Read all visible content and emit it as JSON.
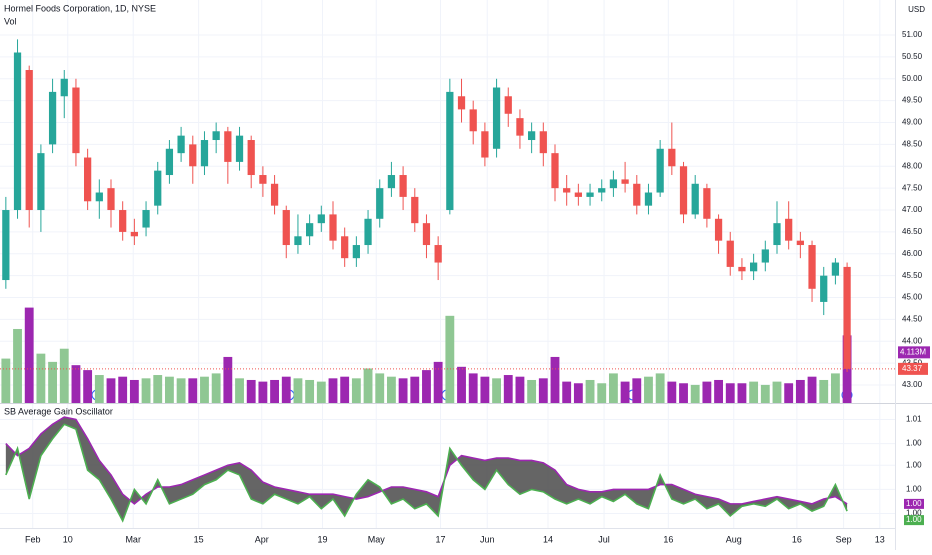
{
  "chart_data": [
    {
      "type": "candlestick",
      "title": "Hormel Foods Corporation, 1D, NYSE",
      "subtitle": "Vol",
      "currency": "USD",
      "up_color": "#26a69a",
      "down_color": "#ef5350",
      "volume_up_color": "#8fc793",
      "volume_down_color": "#9c27b0",
      "open": [
        45.4,
        47.0,
        50.2,
        47.0,
        48.5,
        49.6,
        49.8,
        48.2,
        47.2,
        47.5,
        47.0,
        46.5,
        46.6,
        47.1,
        47.8,
        48.3,
        48.5,
        48.0,
        48.6,
        48.8,
        48.1,
        48.6,
        47.8,
        47.6,
        47.0,
        46.2,
        46.4,
        46.7,
        46.9,
        46.4,
        45.9,
        46.2,
        46.8,
        47.5,
        47.8,
        47.3,
        46.7,
        46.2,
        47.0,
        49.6,
        49.3,
        48.8,
        48.4,
        49.6,
        49.1,
        48.6,
        48.8,
        48.3,
        47.5,
        47.4,
        47.3,
        47.4,
        47.5,
        47.7,
        47.6,
        47.1,
        47.4,
        48.4,
        48.0,
        46.9,
        47.5,
        46.8,
        46.3,
        45.7,
        45.6,
        45.8,
        46.2,
        46.8,
        46.3,
        46.2,
        44.9,
        45.5,
        45.7
      ],
      "high": [
        47.3,
        50.9,
        50.3,
        48.5,
        50.0,
        50.2,
        50.0,
        48.4,
        47.7,
        47.7,
        47.2,
        46.8,
        47.2,
        48.1,
        48.6,
        48.9,
        48.7,
        48.8,
        49.0,
        48.9,
        48.9,
        48.7,
        48.0,
        47.8,
        47.1,
        46.9,
        46.9,
        47.1,
        47.2,
        46.6,
        46.4,
        47.0,
        47.7,
        48.1,
        48.0,
        47.5,
        46.9,
        46.4,
        50.0,
        50.0,
        49.5,
        49.0,
        50.0,
        49.8,
        49.3,
        49.0,
        49.0,
        48.5,
        47.8,
        47.6,
        47.6,
        47.7,
        47.9,
        48.1,
        47.8,
        47.6,
        48.6,
        49.0,
        48.1,
        47.8,
        47.6,
        46.9,
        46.5,
        45.9,
        46.0,
        46.3,
        47.2,
        47.2,
        46.5,
        46.3,
        45.7,
        45.9,
        45.8
      ],
      "low": [
        45.2,
        46.8,
        46.6,
        46.5,
        48.3,
        49.1,
        48.0,
        47.0,
        46.8,
        46.6,
        46.3,
        46.2,
        46.4,
        46.9,
        47.6,
        48.1,
        47.6,
        47.8,
        48.3,
        47.6,
        47.9,
        47.5,
        47.3,
        46.9,
        45.9,
        46.0,
        46.2,
        46.5,
        46.1,
        45.7,
        45.7,
        46.0,
        46.6,
        47.3,
        47.0,
        46.5,
        45.9,
        45.4,
        46.9,
        49.0,
        48.5,
        48.0,
        48.2,
        48.9,
        48.4,
        48.3,
        48.0,
        47.2,
        47.1,
        47.1,
        47.1,
        47.2,
        47.3,
        47.4,
        46.9,
        46.9,
        47.3,
        47.8,
        46.7,
        46.8,
        46.6,
        46.0,
        45.5,
        45.4,
        45.4,
        45.6,
        46.0,
        46.1,
        45.9,
        44.9,
        44.6,
        45.3,
        43.3
      ],
      "close": [
        47.0,
        50.6,
        47.0,
        48.3,
        49.7,
        50.0,
        48.3,
        47.2,
        47.4,
        47.0,
        46.5,
        46.4,
        47.0,
        47.9,
        48.4,
        48.7,
        48.0,
        48.6,
        48.8,
        48.1,
        48.7,
        47.8,
        47.6,
        47.1,
        46.2,
        46.4,
        46.7,
        46.9,
        46.3,
        45.9,
        46.2,
        46.8,
        47.5,
        47.8,
        47.3,
        46.7,
        46.2,
        45.8,
        49.7,
        49.3,
        48.8,
        48.2,
        49.8,
        49.2,
        48.7,
        48.8,
        48.3,
        47.5,
        47.4,
        47.3,
        47.4,
        47.5,
        47.7,
        47.6,
        47.1,
        47.4,
        48.4,
        48.0,
        46.9,
        47.6,
        46.8,
        46.3,
        45.7,
        45.6,
        45.8,
        46.1,
        46.7,
        46.3,
        46.2,
        45.2,
        45.5,
        45.8,
        43.37
      ],
      "last_close_label": "43.37",
      "volume": [
        2.7,
        4.5,
        5.8,
        3.0,
        2.5,
        3.3,
        2.3,
        2.0,
        1.7,
        1.5,
        1.6,
        1.4,
        1.5,
        1.7,
        1.6,
        1.5,
        1.5,
        1.6,
        1.8,
        2.8,
        1.5,
        1.4,
        1.3,
        1.4,
        1.6,
        1.5,
        1.4,
        1.3,
        1.5,
        1.6,
        1.5,
        2.1,
        1.8,
        1.6,
        1.5,
        1.6,
        2.0,
        2.5,
        5.3,
        2.2,
        1.8,
        1.6,
        1.5,
        1.7,
        1.6,
        1.4,
        1.5,
        2.8,
        1.3,
        1.2,
        1.4,
        1.2,
        1.8,
        1.3,
        1.5,
        1.6,
        1.8,
        1.3,
        1.2,
        1.1,
        1.3,
        1.4,
        1.2,
        1.2,
        1.3,
        1.1,
        1.3,
        1.2,
        1.4,
        1.6,
        1.4,
        1.8,
        4.113
      ],
      "last_volume_label": "4.113M",
      "volume_lim": [
        0,
        24.5
      ],
      "xlim": [
        -0.5,
        76.1
      ],
      "xticks": [
        {
          "value": 2.3,
          "label": "Feb"
        },
        {
          "value": 5.3,
          "label": "10"
        },
        {
          "value": 10.9,
          "label": "Mar"
        },
        {
          "value": 16.5,
          "label": "15"
        },
        {
          "value": 21.9,
          "label": "Apr"
        },
        {
          "value": 27.1,
          "label": "19"
        },
        {
          "value": 31.7,
          "label": "May"
        },
        {
          "value": 37.2,
          "label": "17"
        },
        {
          "value": 41.2,
          "label": "Jun"
        },
        {
          "value": 46.4,
          "label": "14"
        },
        {
          "value": 51.2,
          "label": "Jul"
        },
        {
          "value": 56.7,
          "label": "16"
        },
        {
          "value": 62.3,
          "label": "Aug"
        },
        {
          "value": 67.7,
          "label": "16"
        },
        {
          "value": 71.7,
          "label": "Sep"
        },
        {
          "value": 74.8,
          "label": "13"
        }
      ],
      "ylim": [
        42.59,
        51.8
      ],
      "yticks": [
        {
          "value": 43,
          "label": "43.00"
        },
        {
          "value": 43.5,
          "label": "43.50"
        },
        {
          "value": 44,
          "label": "44.00"
        },
        {
          "value": 44.5,
          "label": "44.50"
        },
        {
          "value": 45,
          "label": "45.00"
        },
        {
          "value": 45.5,
          "label": "45.50"
        },
        {
          "value": 46,
          "label": "46.00"
        },
        {
          "value": 46.5,
          "label": "46.50"
        },
        {
          "value": 47,
          "label": "47.00"
        },
        {
          "value": 47.5,
          "label": "47.50"
        },
        {
          "value": 48,
          "label": "48.00"
        },
        {
          "value": 48.5,
          "label": "48.50"
        },
        {
          "value": 49,
          "label": "49.00"
        },
        {
          "value": 49.5,
          "label": "49.50"
        },
        {
          "value": 50,
          "label": "50.00"
        },
        {
          "value": 50.5,
          "label": "50.50"
        },
        {
          "value": 51,
          "label": "51.00"
        }
      ],
      "grid": true
    },
    {
      "type": "line",
      "title": "SB Average Gain Oscillator",
      "fill_color": "#4a4a4a",
      "xlim": [
        -0.5,
        76.1
      ],
      "series": [
        {
          "name": "Average Gain",
          "color": "#9c27b0",
          "values": [
            1.0042,
            1.0037,
            1.004,
            1.0046,
            1.005,
            1.0053,
            1.0052,
            1.0044,
            1.0035,
            1.0029,
            1.0021,
            1.0017,
            1.0021,
            1.0024,
            1.0024,
            1.0025,
            1.0027,
            1.0029,
            1.0031,
            1.0033,
            1.0034,
            1.0031,
            1.0026,
            1.0024,
            1.0023,
            1.0022,
            1.0021,
            1.0021,
            1.0021,
            1.002,
            1.0019,
            1.002,
            1.0022,
            1.0024,
            1.0024,
            1.0023,
            1.0022,
            1.002,
            1.0033,
            1.0037,
            1.0036,
            1.0035,
            1.0036,
            1.0036,
            1.0035,
            1.0035,
            1.0034,
            1.0031,
            1.0025,
            1.0023,
            1.0022,
            1.0022,
            1.0023,
            1.0023,
            1.0023,
            1.0023,
            1.0025,
            1.0025,
            1.0023,
            1.0021,
            1.002,
            1.0019,
            1.0017,
            1.0017,
            1.0018,
            1.0019,
            1.002,
            1.0019,
            1.0018,
            1.0017,
            1.0019,
            1.002,
            1.0017
          ],
          "last_label": "1.00"
        },
        {
          "name": "Gain",
          "color": "#4caf50",
          "values": [
            1.0029,
            1.004,
            1.0019,
            1.0037,
            1.0044,
            1.005,
            1.0048,
            1.0031,
            1.0027,
            1.0019,
            1.001,
            1.0023,
            1.0017,
            1.0027,
            1.0017,
            1.0019,
            1.0021,
            1.0025,
            1.0027,
            1.0031,
            1.0029,
            1.0019,
            1.0017,
            1.0021,
            1.0019,
            1.0017,
            1.002,
            1.0015,
            1.0019,
            1.0012,
            1.0021,
            1.0027,
            1.0024,
            1.0017,
            1.0019,
            1.0015,
            1.0017,
            1.0012,
            1.004,
            1.0033,
            1.0027,
            1.0023,
            1.0031,
            1.0025,
            1.0021,
            1.0023,
            1.0022,
            1.0019,
            1.0017,
            1.0019,
            1.0017,
            1.002,
            1.0018,
            1.0021,
            1.0017,
            1.0015,
            1.0029,
            1.0019,
            1.0017,
            1.0019,
            1.0015,
            1.0017,
            1.0012,
            1.0016,
            1.0017,
            1.0016,
            1.0019,
            1.0015,
            1.0017,
            1.0014,
            1.0016,
            1.0025,
            1.0014
          ],
          "last_label": "1.00"
        }
      ],
      "ylim": [
        1.0007,
        1.0058
      ],
      "yticks": [
        {
          "value": 1.0052,
          "label": "1.01"
        },
        {
          "value": 1.0042,
          "label": "1.00"
        },
        {
          "value": 1.0033,
          "label": "1.00"
        },
        {
          "value": 1.0023,
          "label": "1.00"
        },
        {
          "value": 1.0013,
          "label": "1.00"
        }
      ],
      "grid": true
    }
  ]
}
